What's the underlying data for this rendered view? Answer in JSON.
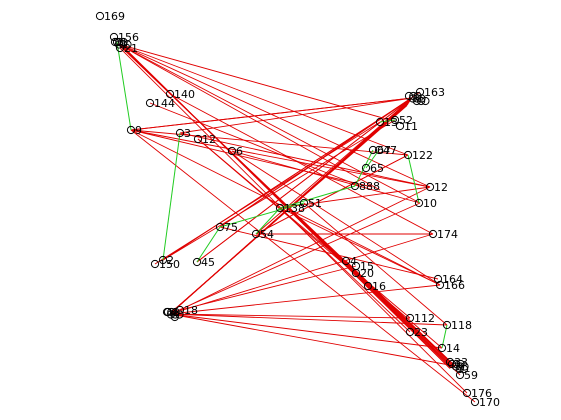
{
  "graph": {
    "colors": {
      "red_edge": "#e00000",
      "green_edge": "#22cc22",
      "node": "#000000",
      "background": "#ffffff"
    },
    "nodes": [
      {
        "id": "n169",
        "label": "169"
      },
      {
        "id": "n156",
        "label": "156"
      },
      {
        "id": "n1",
        "label": "1"
      },
      {
        "id": "n21",
        "label": "21"
      },
      {
        "id": "n140",
        "label": "140"
      },
      {
        "id": "n144",
        "label": "144"
      },
      {
        "id": "n9",
        "label": "9"
      },
      {
        "id": "n3",
        "label": "3"
      },
      {
        "id": "n12a",
        "label": "12"
      },
      {
        "id": "n6",
        "label": "6"
      },
      {
        "id": "n75",
        "label": "75"
      },
      {
        "id": "n54",
        "label": "54"
      },
      {
        "id": "n2",
        "label": "2"
      },
      {
        "id": "n150",
        "label": "150"
      },
      {
        "id": "n45",
        "label": "45"
      },
      {
        "id": "n138",
        "label": "138"
      },
      {
        "id": "n51",
        "label": "51"
      },
      {
        "id": "n13",
        "label": "13"
      },
      {
        "id": "n163",
        "label": "163"
      },
      {
        "id": "n52",
        "label": "52"
      },
      {
        "id": "n11",
        "label": "11"
      },
      {
        "id": "n67",
        "label": "67"
      },
      {
        "id": "n47",
        "label": "47"
      },
      {
        "id": "n65",
        "label": "65"
      },
      {
        "id": "n122",
        "label": "122"
      },
      {
        "id": "n888",
        "label": "888"
      },
      {
        "id": "n12",
        "label": "12"
      },
      {
        "id": "n10",
        "label": "10"
      },
      {
        "id": "n174",
        "label": "174"
      },
      {
        "id": "n4",
        "label": "4"
      },
      {
        "id": "n15",
        "label": "15"
      },
      {
        "id": "n20",
        "label": "20"
      },
      {
        "id": "n16",
        "label": "16"
      },
      {
        "id": "n164",
        "label": "164"
      },
      {
        "id": "n166",
        "label": "166"
      },
      {
        "id": "n112",
        "label": "112"
      },
      {
        "id": "n23",
        "label": "23"
      },
      {
        "id": "n118",
        "label": "118"
      },
      {
        "id": "n14",
        "label": "14"
      },
      {
        "id": "n33",
        "label": "33"
      },
      {
        "id": "n59",
        "label": "59"
      },
      {
        "id": "n176",
        "label": "176"
      },
      {
        "id": "n170",
        "label": "170"
      },
      {
        "id": "nBL",
        "label": "1"
      },
      {
        "id": "nBL2",
        "label": "18"
      }
    ]
  }
}
